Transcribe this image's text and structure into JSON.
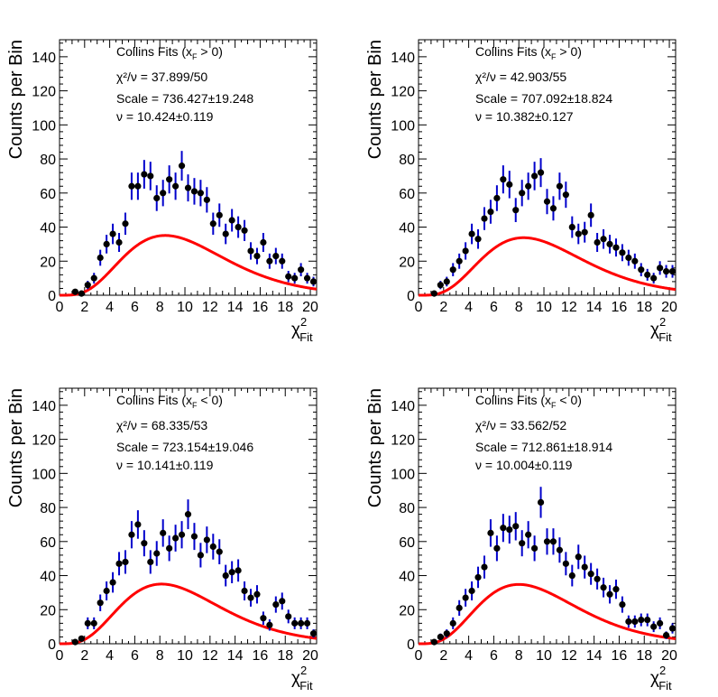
{
  "chart_data": [
    {
      "type": "scatter",
      "title": "Collins Fits (x_F > 0)",
      "title_parts": {
        "prefix": "Collins Fits (x",
        "sub": "F",
        "suffix": " > 0)"
      },
      "chi2_label": "χ²/ν",
      "chi2_value": "37.899/50",
      "scale_label": "Scale",
      "scale_value": "736.427±19.248",
      "nu_label": "ν",
      "nu_value": "10.424±0.119",
      "ylabel": "Counts per Bin",
      "xlabel": {
        "main": "χ",
        "sup": "2",
        "sub": "Fit"
      },
      "xlim": [
        0,
        20.5
      ],
      "ylim": [
        0,
        150
      ],
      "xticks": [
        0,
        2,
        4,
        6,
        8,
        10,
        12,
        14,
        16,
        18,
        20
      ],
      "yticks": [
        0,
        20,
        40,
        60,
        80,
        100,
        120,
        140
      ],
      "fit": {
        "scale": 736.427,
        "nu": 10.424,
        "bin_width": 0.5,
        "color": "#ff0000"
      },
      "series": [
        {
          "marker_color": "#000000",
          "error_color": "#0000cc",
          "x": [
            1.25,
            1.75,
            2.25,
            2.75,
            3.25,
            3.75,
            4.25,
            4.75,
            5.25,
            5.75,
            6.25,
            6.75,
            7.25,
            7.75,
            8.25,
            8.75,
            9.25,
            9.75,
            10.25,
            10.75,
            11.25,
            11.75,
            12.25,
            12.75,
            13.25,
            13.75,
            14.25,
            14.75,
            15.25,
            15.75,
            16.25,
            16.75,
            17.25,
            17.75,
            18.25,
            18.75,
            19.25,
            19.75,
            20.25
          ],
          "y": [
            2,
            1,
            6,
            10,
            22,
            30,
            36,
            31,
            42,
            64,
            64,
            71,
            70,
            57,
            60,
            68,
            64,
            76,
            63,
            61,
            60,
            56,
            42,
            47,
            36,
            44,
            40,
            38,
            26,
            23,
            31,
            20,
            23,
            20,
            11,
            10,
            15,
            10,
            8
          ]
        }
      ]
    },
    {
      "type": "scatter",
      "title": "Collins Fits (x_F > 0)",
      "title_parts": {
        "prefix": "Collins Fits (x",
        "sub": "F",
        "suffix": " > 0)"
      },
      "chi2_label": "χ²/ν",
      "chi2_value": "42.903/55",
      "scale_label": "Scale",
      "scale_value": "707.092±18.824",
      "nu_label": "ν",
      "nu_value": "10.382±0.127",
      "ylabel": "Counts per Bin",
      "xlabel": {
        "main": "χ",
        "sup": "2",
        "sub": "Fit"
      },
      "xlim": [
        0,
        20.5
      ],
      "ylim": [
        0,
        150
      ],
      "xticks": [
        0,
        2,
        4,
        6,
        8,
        10,
        12,
        14,
        16,
        18,
        20
      ],
      "yticks": [
        0,
        20,
        40,
        60,
        80,
        100,
        120,
        140
      ],
      "fit": {
        "scale": 707.092,
        "nu": 10.382,
        "bin_width": 0.5,
        "color": "#ff0000"
      },
      "series": [
        {
          "marker_color": "#000000",
          "error_color": "#0000cc",
          "x": [
            1.25,
            1.75,
            2.25,
            2.75,
            3.25,
            3.75,
            4.25,
            4.75,
            5.25,
            5.75,
            6.25,
            6.75,
            7.25,
            7.75,
            8.25,
            8.75,
            9.25,
            9.75,
            10.25,
            10.75,
            11.25,
            11.75,
            12.25,
            12.75,
            13.25,
            13.75,
            14.25,
            14.75,
            15.25,
            15.75,
            16.25,
            16.75,
            17.25,
            17.75,
            18.25,
            18.75,
            19.25,
            19.75,
            20.25
          ],
          "y": [
            1,
            6,
            8,
            15,
            20,
            26,
            36,
            33,
            45,
            49,
            57,
            68,
            65,
            50,
            60,
            64,
            70,
            72,
            55,
            51,
            64,
            59,
            40,
            36,
            37,
            47,
            31,
            33,
            30,
            28,
            25,
            22,
            20,
            15,
            12,
            10,
            16,
            14,
            14
          ]
        }
      ]
    },
    {
      "type": "scatter",
      "title": "Collins Fits (x_F < 0)",
      "title_parts": {
        "prefix": "Collins Fits (x",
        "sub": "F",
        "suffix": " < 0)"
      },
      "chi2_label": "χ²/ν",
      "chi2_value": "68.335/53",
      "scale_label": "Scale",
      "scale_value": "723.154±19.046",
      "nu_label": "ν",
      "nu_value": "10.141±0.119",
      "ylabel": "Counts per Bin",
      "xlabel": {
        "main": "χ",
        "sup": "2",
        "sub": "Fit"
      },
      "xlim": [
        0,
        20.5
      ],
      "ylim": [
        0,
        150
      ],
      "xticks": [
        0,
        2,
        4,
        6,
        8,
        10,
        12,
        14,
        16,
        18,
        20
      ],
      "yticks": [
        0,
        20,
        40,
        60,
        80,
        100,
        120,
        140
      ],
      "fit": {
        "scale": 723.154,
        "nu": 10.141,
        "bin_width": 0.5,
        "color": "#ff0000"
      },
      "series": [
        {
          "marker_color": "#000000",
          "error_color": "#0000cc",
          "x": [
            1.25,
            1.75,
            2.25,
            2.75,
            3.25,
            3.75,
            4.25,
            4.75,
            5.25,
            5.75,
            6.25,
            6.75,
            7.25,
            7.75,
            8.25,
            8.75,
            9.25,
            9.75,
            10.25,
            10.75,
            11.25,
            11.75,
            12.25,
            12.75,
            13.25,
            13.75,
            14.25,
            14.75,
            15.25,
            15.75,
            16.25,
            16.75,
            17.25,
            17.75,
            18.25,
            18.75,
            19.25,
            19.75,
            20.25
          ],
          "y": [
            1,
            3,
            12,
            12,
            24,
            31,
            36,
            47,
            48,
            64,
            70,
            59,
            48,
            53,
            65,
            56,
            62,
            64,
            76,
            63,
            52,
            61,
            57,
            54,
            40,
            42,
            43,
            31,
            27,
            29,
            15,
            11,
            23,
            25,
            16,
            12,
            12,
            12,
            6
          ]
        }
      ]
    },
    {
      "type": "scatter",
      "title": "Collins Fits (x_F < 0)",
      "title_parts": {
        "prefix": "Collins Fits (x",
        "sub": "F",
        "suffix": " < 0)"
      },
      "chi2_label": "χ²/ν",
      "chi2_value": "33.562/52",
      "scale_label": "Scale",
      "scale_value": "712.861±18.914",
      "nu_label": "ν",
      "nu_value": "10.004±0.119",
      "ylabel": "Counts per Bin",
      "xlabel": {
        "main": "χ",
        "sup": "2",
        "sub": "Fit"
      },
      "xlim": [
        0,
        20.5
      ],
      "ylim": [
        0,
        150
      ],
      "xticks": [
        0,
        2,
        4,
        6,
        8,
        10,
        12,
        14,
        16,
        18,
        20
      ],
      "yticks": [
        0,
        20,
        40,
        60,
        80,
        100,
        120,
        140
      ],
      "fit": {
        "scale": 712.861,
        "nu": 10.004,
        "bin_width": 0.5,
        "color": "#ff0000"
      },
      "series": [
        {
          "marker_color": "#000000",
          "error_color": "#0000cc",
          "x": [
            1.25,
            1.75,
            2.25,
            2.75,
            3.25,
            3.75,
            4.25,
            4.75,
            5.25,
            5.75,
            6.25,
            6.75,
            7.25,
            7.75,
            8.25,
            8.75,
            9.25,
            9.75,
            10.25,
            10.75,
            11.25,
            11.75,
            12.25,
            12.75,
            13.25,
            13.75,
            14.25,
            14.75,
            15.25,
            15.75,
            16.25,
            16.75,
            17.25,
            17.75,
            18.25,
            18.75,
            19.25,
            19.75,
            20.25
          ],
          "y": [
            1,
            4,
            6,
            12,
            21,
            27,
            31,
            39,
            45,
            65,
            56,
            68,
            67,
            69,
            59,
            64,
            56,
            83,
            60,
            60,
            55,
            47,
            40,
            51,
            45,
            41,
            38,
            33,
            29,
            32,
            23,
            13,
            13,
            14,
            14,
            10,
            12,
            5,
            9
          ]
        }
      ]
    }
  ]
}
